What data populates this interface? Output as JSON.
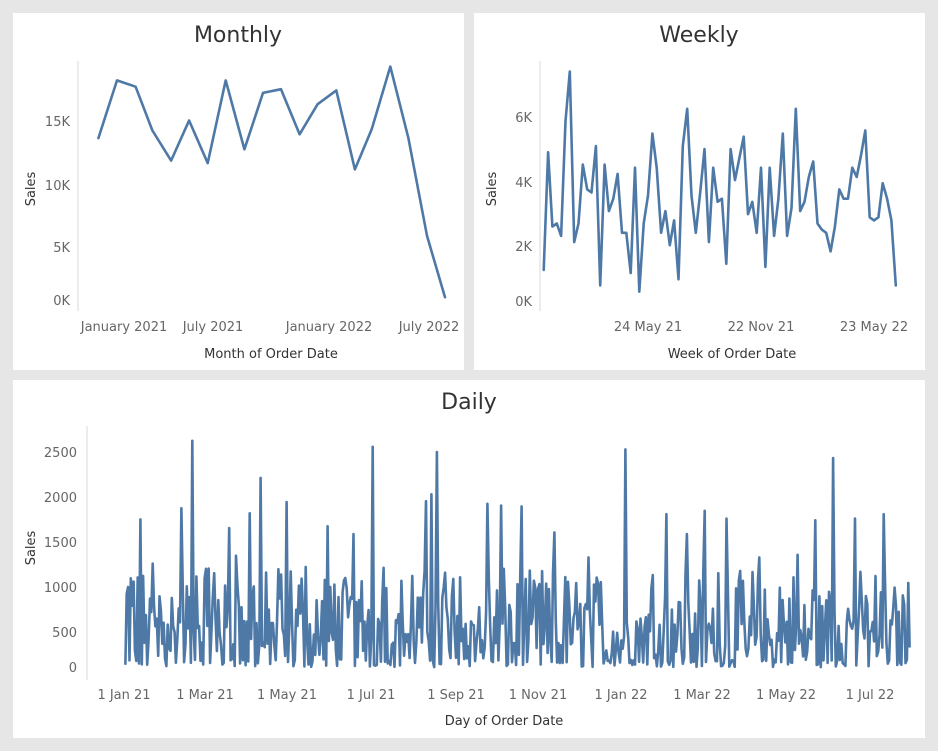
{
  "colors": {
    "background": "#e6e6e6",
    "panel": "#ffffff",
    "line": "#4e79a7"
  },
  "chart_data": [
    {
      "type": "line",
      "title": "Monthly",
      "xlabel": "Month of Order Date",
      "ylabel": "Sales",
      "x_tick_labels": [
        "January 2021",
        "July 2021",
        "January 2022",
        "July 2022"
      ],
      "y_tick_labels": [
        "0K",
        "5K",
        "10K",
        "15K"
      ],
      "x": [
        "2020-12",
        "2021-01",
        "2021-02",
        "2021-03",
        "2021-04",
        "2021-05",
        "2021-06",
        "2021-07",
        "2021-08",
        "2021-09",
        "2021-10",
        "2021-11",
        "2021-12",
        "2022-01",
        "2022-02",
        "2022-03",
        "2022-04",
        "2022-05",
        "2022-06",
        "2022-07"
      ],
      "values": [
        13000,
        17600,
        17100,
        13600,
        11200,
        14400,
        11000,
        17600,
        12100,
        16600,
        16900,
        13300,
        15700,
        16800,
        10500,
        13700,
        18700,
        13000,
        5200,
        300
      ],
      "ylim": [
        0,
        19500
      ],
      "grid": false
    },
    {
      "type": "line",
      "title": "Weekly",
      "xlabel": "Week of Order Date",
      "ylabel": "Sales",
      "x_tick_labels": [
        "24 May 21",
        "22 Nov 21",
        "23 May 22"
      ],
      "y_tick_labels": [
        "0K",
        "2K",
        "4K",
        "6K"
      ],
      "x_start": "2020-12-28",
      "x_interval_days": 7,
      "values": [
        1000,
        4800,
        2400,
        2500,
        2100,
        5800,
        7400,
        1900,
        2500,
        4400,
        3600,
        3500,
        5000,
        500,
        4400,
        2900,
        3300,
        4100,
        2200,
        2200,
        900,
        4300,
        300,
        2500,
        3400,
        5400,
        4300,
        2200,
        2900,
        1800,
        2600,
        700,
        5000,
        6200,
        3400,
        2200,
        3500,
        4900,
        1900,
        4300,
        3200,
        3300,
        1200,
        4900,
        3900,
        4600,
        5300,
        2800,
        3200,
        2200,
        4300,
        1100,
        4300,
        2100,
        3300,
        5400,
        2100,
        3000,
        6200,
        2900,
        3200,
        4000,
        4500,
        2500,
        2300,
        2200,
        1600,
        2400,
        3600,
        3300,
        3300,
        4300,
        4000,
        4700,
        5500,
        2700,
        2600,
        2700,
        3800,
        3300,
        2600,
        500
      ],
      "ylim": [
        0,
        7800
      ],
      "grid": false
    },
    {
      "type": "line",
      "title": "Daily",
      "xlabel": "Day of Order Date",
      "ylabel": "Sales",
      "x_tick_labels": [
        "1 Jan 21",
        "1 Mar 21",
        "1 May 21",
        "1 Jul 21",
        "1 Sep 21",
        "1 Nov 21",
        "1 Jan 22",
        "1 Mar 22",
        "1 May 22",
        "1 Jul 22"
      ],
      "y_tick_labels": [
        "0",
        "500",
        "1000",
        "1500",
        "2000",
        "2500"
      ],
      "x_start": "2021-01-02",
      "x_end": "2022-07-30",
      "peaks": [
        {
          "date": "2021-01-02",
          "value": 50
        },
        {
          "date": "2021-01-03",
          "value": 860
        },
        {
          "date": "2021-01-08",
          "value": 1000
        },
        {
          "date": "2021-01-13",
          "value": 1720
        },
        {
          "date": "2021-01-22",
          "value": 1210
        },
        {
          "date": "2021-01-27",
          "value": 830
        },
        {
          "date": "2021-02-12",
          "value": 1850
        },
        {
          "date": "2021-02-20",
          "value": 2630
        },
        {
          "date": "2021-02-23",
          "value": 1060
        },
        {
          "date": "2021-03-04",
          "value": 1150
        },
        {
          "date": "2021-03-19",
          "value": 1620
        },
        {
          "date": "2021-03-24",
          "value": 1300
        },
        {
          "date": "2021-04-03",
          "value": 1790
        },
        {
          "date": "2021-04-11",
          "value": 2200
        },
        {
          "date": "2021-04-30",
          "value": 1920
        },
        {
          "date": "2021-05-14",
          "value": 1170
        },
        {
          "date": "2021-05-30",
          "value": 1640
        },
        {
          "date": "2021-06-18",
          "value": 1550
        },
        {
          "date": "2021-07-02",
          "value": 2560
        },
        {
          "date": "2021-07-10",
          "value": 1160
        },
        {
          "date": "2021-08-10",
          "value": 1930
        },
        {
          "date": "2021-08-14",
          "value": 2010
        },
        {
          "date": "2021-08-18",
          "value": 2500
        },
        {
          "date": "2021-09-04",
          "value": 1050
        },
        {
          "date": "2021-09-24",
          "value": 1900
        },
        {
          "date": "2021-10-04",
          "value": 1880
        },
        {
          "date": "2021-10-19",
          "value": 1870
        },
        {
          "date": "2021-11-12",
          "value": 1570
        },
        {
          "date": "2021-12-07",
          "value": 1280
        },
        {
          "date": "2022-01-03",
          "value": 2530
        },
        {
          "date": "2022-02-02",
          "value": 1780
        },
        {
          "date": "2022-02-17",
          "value": 1550
        },
        {
          "date": "2022-03-02",
          "value": 1820
        },
        {
          "date": "2022-03-18",
          "value": 1730
        },
        {
          "date": "2022-04-11",
          "value": 1280
        },
        {
          "date": "2022-05-09",
          "value": 1310
        },
        {
          "date": "2022-05-22",
          "value": 1710
        },
        {
          "date": "2022-06-04",
          "value": 2430
        },
        {
          "date": "2022-06-20",
          "value": 1730
        },
        {
          "date": "2022-07-11",
          "value": 1780
        },
        {
          "date": "2022-07-19",
          "value": 930
        },
        {
          "date": "2022-07-30",
          "value": 250
        }
      ],
      "ylim": [
        0,
        2800
      ],
      "grid": false
    }
  ]
}
